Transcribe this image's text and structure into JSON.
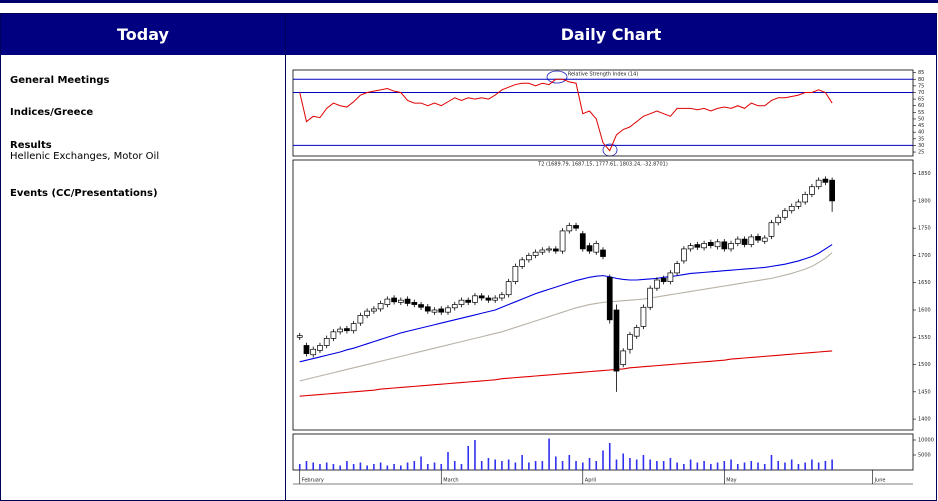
{
  "header": {
    "left": "Today",
    "right": "Daily Chart"
  },
  "sections": [
    {
      "title": "General Meetings"
    },
    {
      "title": "Indices/Greece"
    },
    {
      "title": "Results",
      "text": "Hellenic Exchanges, Motor Oil"
    },
    {
      "title": "Events (CC/Presentations)"
    }
  ],
  "chart_data": [
    {
      "type": "line",
      "title": "Relative Strength Index (14)",
      "color": "#e00000",
      "values": [
        70,
        48,
        52,
        51,
        58,
        62,
        60,
        59,
        63,
        68,
        70,
        71,
        72,
        73,
        71,
        70,
        64,
        62,
        62,
        60,
        62,
        60,
        63,
        66,
        64,
        66,
        65,
        66,
        65,
        68,
        72,
        74,
        76,
        77,
        77,
        75,
        77,
        76,
        80,
        80,
        78,
        77,
        54,
        56,
        50,
        32,
        26,
        38,
        42,
        44,
        48,
        52,
        54,
        56,
        54,
        52,
        58,
        58,
        58,
        57,
        58,
        56,
        58,
        59,
        58,
        60,
        58,
        62,
        60,
        60,
        64,
        66,
        66,
        67,
        68,
        70,
        70,
        72,
        70,
        62
      ],
      "xlim": [
        -1,
        91
      ],
      "ylim": [
        22,
        87
      ],
      "yticks": [
        25,
        30,
        35,
        40,
        45,
        50,
        55,
        60,
        65,
        70,
        75,
        80,
        85
      ],
      "reference_lines": [
        80,
        70,
        30
      ],
      "reference_color": "#0000c0"
    },
    {
      "type": "candlestick",
      "title": "T2 (1689.79, 1687.15, 1777.61, 1803.24, -32.8701)",
      "open": [
        1550,
        1535,
        1518,
        1526,
        1535,
        1548,
        1560,
        1566,
        1562,
        1576,
        1590,
        1598,
        1602,
        1610,
        1622,
        1614,
        1620,
        1614,
        1610,
        1606,
        1596,
        1602,
        1596,
        1604,
        1610,
        1618,
        1614,
        1626,
        1622,
        1618,
        1622,
        1628,
        1652,
        1680,
        1692,
        1700,
        1706,
        1710,
        1712,
        1708,
        1745,
        1755,
        1740,
        1718,
        1706,
        1710,
        1660,
        1600,
        1500,
        1528,
        1552,
        1570,
        1605,
        1640,
        1658,
        1652,
        1668,
        1690,
        1712,
        1720,
        1714,
        1724,
        1716,
        1725,
        1712,
        1722,
        1730,
        1720,
        1735,
        1726,
        1735,
        1760,
        1770,
        1782,
        1790,
        1798,
        1812,
        1826,
        1840,
        1838
      ],
      "high": [
        1558,
        1540,
        1533,
        1540,
        1553,
        1565,
        1570,
        1571,
        1580,
        1595,
        1603,
        1607,
        1617,
        1625,
        1627,
        1623,
        1625,
        1619,
        1615,
        1611,
        1605,
        1607,
        1609,
        1615,
        1623,
        1623,
        1631,
        1631,
        1627,
        1627,
        1633,
        1657,
        1685,
        1697,
        1705,
        1711,
        1715,
        1717,
        1717,
        1750,
        1760,
        1760,
        1745,
        1723,
        1727,
        1715,
        1665,
        1610,
        1530,
        1560,
        1573,
        1610,
        1645,
        1660,
        1663,
        1673,
        1690,
        1717,
        1723,
        1725,
        1727,
        1729,
        1730,
        1730,
        1727,
        1735,
        1735,
        1739,
        1740,
        1737,
        1765,
        1775,
        1787,
        1795,
        1803,
        1817,
        1831,
        1843,
        1845,
        1843
      ],
      "low": [
        1545,
        1515,
        1513,
        1521,
        1530,
        1543,
        1555,
        1557,
        1557,
        1571,
        1585,
        1593,
        1597,
        1605,
        1610,
        1609,
        1607,
        1605,
        1600,
        1593,
        1591,
        1591,
        1591,
        1599,
        1605,
        1609,
        1609,
        1617,
        1613,
        1613,
        1617,
        1623,
        1647,
        1675,
        1687,
        1695,
        1701,
        1705,
        1703,
        1703,
        1740,
        1745,
        1707,
        1703,
        1701,
        1693,
        1575,
        1450,
        1495,
        1520,
        1547,
        1565,
        1600,
        1635,
        1647,
        1647,
        1663,
        1685,
        1707,
        1710,
        1709,
        1713,
        1711,
        1707,
        1707,
        1717,
        1715,
        1715,
        1723,
        1721,
        1730,
        1755,
        1765,
        1777,
        1785,
        1793,
        1807,
        1821,
        1829,
        1780
      ],
      "close": [
        1553,
        1520,
        1528,
        1535,
        1548,
        1560,
        1565,
        1562,
        1575,
        1590,
        1598,
        1602,
        1612,
        1620,
        1615,
        1618,
        1612,
        1610,
        1605,
        1598,
        1600,
        1596,
        1604,
        1610,
        1618,
        1614,
        1626,
        1622,
        1618,
        1622,
        1628,
        1652,
        1680,
        1692,
        1700,
        1706,
        1710,
        1712,
        1708,
        1745,
        1755,
        1750,
        1712,
        1708,
        1722,
        1698,
        1582,
        1488,
        1525,
        1555,
        1568,
        1605,
        1640,
        1655,
        1652,
        1668,
        1685,
        1712,
        1718,
        1715,
        1722,
        1718,
        1725,
        1712,
        1722,
        1730,
        1720,
        1734,
        1728,
        1732,
        1760,
        1770,
        1782,
        1790,
        1798,
        1812,
        1826,
        1838,
        1834,
        1800
      ],
      "overlays": [
        {
          "color": "#0000e0",
          "values": [
            1505,
            1508,
            1511,
            1514,
            1517,
            1520,
            1523,
            1527,
            1530,
            1534,
            1538,
            1542,
            1546,
            1550,
            1554,
            1558,
            1561,
            1564,
            1567,
            1570,
            1573,
            1576,
            1579,
            1582,
            1585,
            1588,
            1591,
            1594,
            1597,
            1600,
            1605,
            1610,
            1615,
            1620,
            1625,
            1630,
            1634,
            1638,
            1642,
            1646,
            1650,
            1654,
            1657,
            1660,
            1662,
            1663,
            1661,
            1658,
            1656,
            1655,
            1655,
            1656,
            1657,
            1658,
            1660,
            1661,
            1663,
            1665,
            1667,
            1668,
            1669,
            1670,
            1671,
            1672,
            1673,
            1674,
            1675,
            1676,
            1677,
            1678,
            1680,
            1682,
            1684,
            1687,
            1690,
            1694,
            1698,
            1704,
            1712,
            1720
          ]
        },
        {
          "color": "#b8b2a8",
          "values": [
            1470,
            1473,
            1476,
            1479,
            1482,
            1485,
            1488,
            1491,
            1494,
            1497,
            1500,
            1503,
            1506,
            1509,
            1512,
            1515,
            1518,
            1521,
            1524,
            1527,
            1530,
            1533,
            1536,
            1539,
            1542,
            1545,
            1548,
            1551,
            1554,
            1557,
            1560,
            1564,
            1568,
            1572,
            1576,
            1580,
            1584,
            1588,
            1592,
            1596,
            1600,
            1604,
            1607,
            1610,
            1612,
            1614,
            1615,
            1616,
            1617,
            1618,
            1619,
            1620,
            1622,
            1624,
            1626,
            1628,
            1630,
            1632,
            1634,
            1636,
            1638,
            1640,
            1642,
            1644,
            1646,
            1648,
            1650,
            1652,
            1654,
            1656,
            1658,
            1661,
            1664,
            1667,
            1671,
            1675,
            1680,
            1687,
            1695,
            1705
          ]
        },
        {
          "color": "#e00000",
          "values": [
            1442,
            1443,
            1444,
            1445,
            1446,
            1447,
            1448,
            1449,
            1450,
            1451,
            1452,
            1453,
            1455,
            1456,
            1457,
            1458,
            1459,
            1460,
            1461,
            1462,
            1463,
            1464,
            1465,
            1466,
            1467,
            1468,
            1469,
            1470,
            1471,
            1472,
            1474,
            1475,
            1476,
            1477,
            1478,
            1479,
            1480,
            1481,
            1482,
            1483,
            1484,
            1485,
            1486,
            1487,
            1488,
            1489,
            1490,
            1491,
            1492,
            1494,
            1495,
            1496,
            1497,
            1498,
            1499,
            1500,
            1501,
            1502,
            1503,
            1504,
            1505,
            1506,
            1507,
            1508,
            1510,
            1511,
            1512,
            1513,
            1514,
            1515,
            1516,
            1517,
            1518,
            1519,
            1520,
            1521,
            1522,
            1523,
            1524,
            1525
          ]
        }
      ],
      "xlim": [
        -1,
        91
      ],
      "ylim": [
        1380,
        1875
      ],
      "yticks": [
        1400,
        1450,
        1500,
        1550,
        1600,
        1650,
        1700,
        1750,
        1800,
        1850
      ]
    },
    {
      "type": "bar",
      "color": "#3030f0",
      "values": [
        2000,
        3000,
        2500,
        2000,
        2500,
        2000,
        1500,
        3000,
        2000,
        2500,
        1500,
        2000,
        2500,
        1500,
        2000,
        1500,
        2500,
        3000,
        4500,
        2000,
        2500,
        2000,
        6000,
        3000,
        2000,
        8000,
        10000,
        3000,
        4000,
        3500,
        3000,
        3500,
        2500,
        5000,
        2500,
        3000,
        3000,
        10500,
        4500,
        3000,
        5000,
        3000,
        2500,
        4000,
        3000,
        6500,
        9000,
        3500,
        5500,
        4000,
        3500,
        5000,
        3500,
        3000,
        3000,
        4000,
        2500,
        2000,
        3500,
        2500,
        3000,
        2000,
        2500,
        3000,
        3500,
        2000,
        2500,
        3000,
        2500,
        2000,
        5000,
        3000,
        2500,
        3500,
        2000,
        2500,
        3500,
        2500,
        3000,
        3500
      ],
      "xlim": [
        -1,
        91
      ],
      "ylim": [
        0,
        12000
      ],
      "yticks": [
        5000,
        10000
      ],
      "xticks": [
        {
          "value": 0,
          "label": "February"
        },
        {
          "value": 21,
          "label": "March"
        },
        {
          "value": 42,
          "label": "April"
        },
        {
          "value": 63,
          "label": "May"
        },
        {
          "value": 85,
          "label": "June"
        }
      ]
    }
  ]
}
